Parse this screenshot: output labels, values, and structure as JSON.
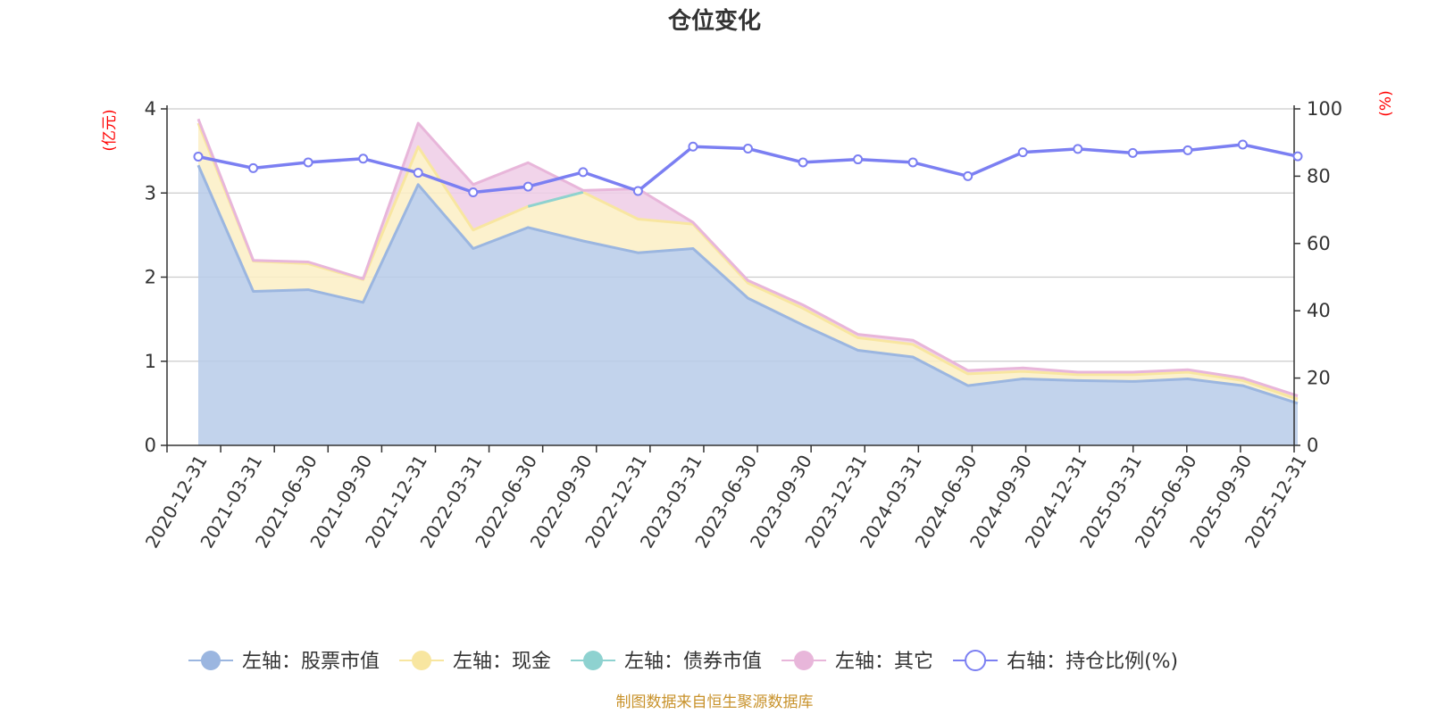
{
  "chart_data": {
    "type": "area",
    "title": "仓位变化",
    "left_axis": {
      "unit_label": "(亿元)",
      "ylim": [
        0,
        4
      ],
      "ticks": [
        "0",
        "1",
        "2",
        "3",
        "4"
      ]
    },
    "right_axis": {
      "unit_label": "(%)",
      "ylim": [
        0,
        100
      ],
      "ticks": [
        "0",
        "20",
        "40",
        "60",
        "80",
        "100"
      ]
    },
    "categories": [
      "2020-12-31",
      "2021-03-31",
      "2021-06-30",
      "2021-09-30",
      "2021-12-31",
      "2022-03-31",
      "2022-06-30",
      "2022-09-30",
      "2022-12-31",
      "2023-03-31",
      "2023-06-30",
      "2023-09-30",
      "2023-12-31",
      "2024-03-31",
      "2024-06-30",
      "2024-09-30",
      "2024-12-31",
      "2025-03-31",
      "2025-06-30",
      "2025-09-30",
      "2025-12-31"
    ],
    "series": [
      {
        "name": "左轴：股票市值",
        "axis": "left",
        "color": "#9bb6e0",
        "fill": "#b7cbe9",
        "values": [
          3.33,
          1.83,
          1.85,
          1.7,
          3.1,
          2.34,
          2.59,
          2.43,
          2.29,
          2.34,
          1.75,
          1.43,
          1.13,
          1.05,
          0.71,
          0.79,
          0.77,
          0.76,
          0.79,
          0.71,
          0.5
        ]
      },
      {
        "name": "左轴：现金",
        "axis": "left",
        "color": "#f8e6a0",
        "fill": "#fbefc4",
        "values": [
          0.5,
          0.36,
          0.31,
          0.27,
          0.45,
          0.22,
          0.25,
          0.58,
          0.4,
          0.29,
          0.18,
          0.2,
          0.15,
          0.15,
          0.14,
          0.09,
          0.07,
          0.08,
          0.08,
          0.06,
          0.05
        ]
      },
      {
        "name": "左轴：债券市值",
        "axis": "left",
        "color": "#8ed2d0",
        "fill": "#b5e3e1",
        "values": [
          null,
          null,
          null,
          null,
          0.0,
          null,
          0.0,
          0.0,
          null,
          null,
          null,
          null,
          null,
          null,
          null,
          null,
          null,
          null,
          null,
          null,
          null
        ]
      },
      {
        "name": "左轴：其它",
        "axis": "left",
        "color": "#e8b6da",
        "fill": "#efcde6",
        "values": [
          0.05,
          0.01,
          0.02,
          0.01,
          0.28,
          0.54,
          0.52,
          0.02,
          0.36,
          0.02,
          0.03,
          0.04,
          0.04,
          0.05,
          0.04,
          0.04,
          0.03,
          0.03,
          0.03,
          0.03,
          0.04
        ]
      },
      {
        "name": "右轴：持仓比例(%)",
        "axis": "right",
        "type": "line",
        "color": "#7b7ff2",
        "values": [
          85.8,
          82.4,
          84.1,
          85.2,
          81.0,
          75.2,
          76.9,
          81.2,
          75.6,
          88.8,
          88.2,
          84.1,
          85.0,
          84.1,
          80.0,
          87.1,
          88.1,
          86.9,
          87.7,
          89.4,
          85.9
        ]
      }
    ]
  },
  "footer": {
    "source": "制图数据来自恒生聚源数据库"
  }
}
